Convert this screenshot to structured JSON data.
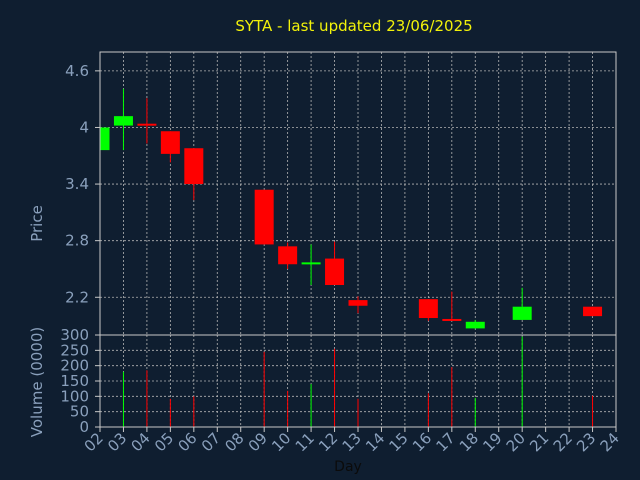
{
  "title": "SYTA - last updated 23/06/2025",
  "colors": {
    "background": "#0f1e30",
    "plot_border": "#c8c8c8",
    "grid": "#b4b4b4",
    "up": "#00ff00",
    "down": "#ff0000",
    "title": "#f2f20a",
    "tick": "#8aa0bc"
  },
  "chart_data": [
    {
      "type": "candlestick",
      "ylabel": "Price",
      "ylim": [
        1.8,
        4.8
      ],
      "yticks": [
        2.2,
        2.8,
        3.4,
        4,
        4.6
      ],
      "ytick_labels": [
        "2.2",
        "2.8",
        "3.4",
        "4",
        "4.6"
      ],
      "grid": true,
      "candles": [
        {
          "day": 2,
          "open": 3.76,
          "close": 4.0,
          "high": 4.0,
          "low": 3.76
        },
        {
          "day": 3,
          "open": 4.02,
          "close": 4.12,
          "high": 4.41,
          "low": 3.76
        },
        {
          "day": 4,
          "open": 4.04,
          "close": 4.02,
          "high": 4.31,
          "low": 3.83
        },
        {
          "day": 5,
          "open": 3.96,
          "close": 3.72,
          "high": 3.96,
          "low": 3.63
        },
        {
          "day": 6,
          "open": 3.78,
          "close": 3.4,
          "high": 3.78,
          "low": 3.23
        },
        {
          "day": 9,
          "open": 3.34,
          "close": 2.76,
          "high": 3.34,
          "low": 2.76
        },
        {
          "day": 10,
          "open": 2.74,
          "close": 2.55,
          "high": 2.78,
          "low": 2.5
        },
        {
          "day": 11,
          "open": 2.55,
          "close": 2.57,
          "high": 2.76,
          "low": 2.33
        },
        {
          "day": 12,
          "open": 2.61,
          "close": 2.33,
          "high": 2.79,
          "low": 2.33
        },
        {
          "day": 13,
          "open": 2.17,
          "close": 2.11,
          "high": 2.21,
          "low": 2.03
        },
        {
          "day": 16,
          "open": 2.18,
          "close": 1.98,
          "high": 2.18,
          "low": 1.95
        },
        {
          "day": 17,
          "open": 1.97,
          "close": 1.95,
          "high": 2.26,
          "low": 1.95
        },
        {
          "day": 18,
          "open": 1.87,
          "close": 1.94,
          "high": 1.96,
          "low": 1.87
        },
        {
          "day": 20,
          "open": 1.96,
          "close": 2.1,
          "high": 2.3,
          "low": 1.96
        },
        {
          "day": 23,
          "open": 2.1,
          "close": 2.0,
          "high": 2.1,
          "low": 2.0
        }
      ]
    },
    {
      "type": "bar",
      "ylabel": "Volume (0000)",
      "ylim": [
        0,
        300
      ],
      "yticks": [
        0,
        50,
        100,
        150,
        200,
        250,
        300
      ],
      "ytick_labels": [
        "0",
        "50",
        "100",
        "150",
        "200",
        "250",
        "300"
      ],
      "xlabel": "Day",
      "xlim": [
        2,
        24
      ],
      "x_tick_labels": [
        "02",
        "03",
        "04",
        "05",
        "06",
        "07",
        "08",
        "09",
        "10",
        "11",
        "12",
        "13",
        "14",
        "15",
        "16",
        "17",
        "18",
        "19",
        "20",
        "21",
        "22",
        "23",
        "24"
      ],
      "grid": true,
      "bars": [
        {
          "day": 3,
          "volume": 180,
          "direction": "up"
        },
        {
          "day": 4,
          "volume": 185,
          "direction": "down"
        },
        {
          "day": 5,
          "volume": 92,
          "direction": "down"
        },
        {
          "day": 6,
          "volume": 100,
          "direction": "down"
        },
        {
          "day": 9,
          "volume": 245,
          "direction": "down"
        },
        {
          "day": 10,
          "volume": 118,
          "direction": "down"
        },
        {
          "day": 11,
          "volume": 140,
          "direction": "up"
        },
        {
          "day": 12,
          "volume": 255,
          "direction": "down"
        },
        {
          "day": 13,
          "volume": 92,
          "direction": "down"
        },
        {
          "day": 16,
          "volume": 110,
          "direction": "down"
        },
        {
          "day": 17,
          "volume": 195,
          "direction": "down"
        },
        {
          "day": 18,
          "volume": 95,
          "direction": "up"
        },
        {
          "day": 20,
          "volume": 295,
          "direction": "up"
        },
        {
          "day": 23,
          "volume": 102,
          "direction": "down"
        }
      ]
    }
  ]
}
